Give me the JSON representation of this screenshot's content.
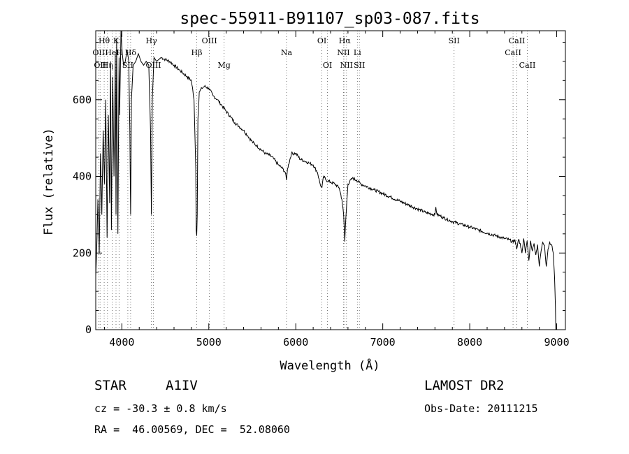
{
  "chart_data": {
    "type": "line",
    "title": "spec-55911-B91107_sp03-087.fits",
    "xlabel": "Wavelength (Å)",
    "ylabel": "Flux (relative)",
    "xlim": [
      3700,
      9100
    ],
    "ylim": [
      0,
      780
    ],
    "xticks": [
      4000,
      5000,
      6000,
      7000,
      8000,
      9000
    ],
    "yticks": [
      0,
      200,
      400,
      600
    ],
    "grid": false,
    "series": [
      {
        "values_note": "",
        "x": [
          3700,
          3710,
          3725,
          3740,
          3755,
          3770,
          3785,
          3800,
          3815,
          3830,
          3845,
          3860,
          3870,
          3880,
          3895,
          3910,
          3925,
          3933,
          3940,
          3955,
          3968,
          3975,
          3990,
          4005,
          4020,
          4040,
          4060,
          4080,
          4092,
          4101,
          4110,
          4130,
          4160,
          4190,
          4220,
          4250,
          4280,
          4310,
          4330,
          4340,
          4350,
          4370,
          4400,
          4450,
          4500,
          4550,
          4600,
          4650,
          4700,
          4750,
          4800,
          4830,
          4850,
          4855,
          4861,
          4867,
          4875,
          4890,
          4920,
          4950,
          5000,
          5050,
          5100,
          5150,
          5200,
          5250,
          5300,
          5350,
          5400,
          5450,
          5500,
          5550,
          5600,
          5650,
          5700,
          5750,
          5800,
          5850,
          5880,
          5893,
          5905,
          5950,
          6000,
          6050,
          6100,
          6150,
          6200,
          6250,
          6280,
          6300,
          6320,
          6350,
          6400,
          6450,
          6500,
          6530,
          6550,
          6563,
          6575,
          6600,
          6650,
          6700,
          6750,
          6800,
          6900,
          7000,
          7100,
          7200,
          7300,
          7400,
          7500,
          7600,
          7610,
          7625,
          7650,
          7700,
          7800,
          7900,
          8000,
          8100,
          8200,
          8300,
          8400,
          8450,
          8500,
          8520,
          8540,
          8560,
          8580,
          8600,
          8620,
          8640,
          8660,
          8680,
          8700,
          8720,
          8740,
          8760,
          8780,
          8800,
          8820,
          8840,
          8860,
          8880,
          8900,
          8920,
          8940,
          8960,
          8975,
          8985,
          8990
        ],
        "y": [
          140,
          200,
          340,
          200,
          460,
          300,
          520,
          380,
          600,
          240,
          560,
          330,
          700,
          260,
          660,
          400,
          720,
          300,
          760,
          250,
          710,
          560,
          780,
          720,
          690,
          700,
          730,
          700,
          520,
          300,
          600,
          690,
          700,
          720,
          700,
          690,
          700,
          690,
          520,
          300,
          600,
          710,
          700,
          710,
          705,
          700,
          690,
          680,
          670,
          660,
          650,
          600,
          420,
          260,
          245,
          300,
          550,
          620,
          630,
          635,
          630,
          610,
          600,
          585,
          570,
          555,
          540,
          530,
          520,
          505,
          490,
          480,
          470,
          460,
          455,
          445,
          430,
          420,
          410,
          390,
          420,
          460,
          460,
          445,
          440,
          435,
          430,
          410,
          380,
          370,
          400,
          390,
          385,
          380,
          370,
          340,
          300,
          230,
          290,
          380,
          395,
          390,
          380,
          375,
          365,
          355,
          345,
          335,
          325,
          315,
          305,
          300,
          320,
          300,
          298,
          292,
          282,
          275,
          268,
          260,
          252,
          245,
          238,
          235,
          228,
          235,
          210,
          235,
          225,
          200,
          238,
          200,
          232,
          180,
          232,
          205,
          225,
          195,
          222,
          165,
          205,
          228,
          220,
          165,
          210,
          228,
          222,
          200,
          140,
          60,
          0
        ]
      }
    ],
    "lines": [
      {
        "x": 3734,
        "label": "OII",
        "row": 2
      },
      {
        "x": 3750,
        "label": "OII",
        "row": 3
      },
      {
        "x": 3797,
        "label": "Hθ",
        "row": 1
      },
      {
        "x": 3835,
        "label": "Hη",
        "row": 3
      },
      {
        "x": 3889,
        "label": "HeI",
        "row": 2
      },
      {
        "x": 3933,
        "label": "K",
        "row": 1
      },
      {
        "x": 3968,
        "label": "H",
        "row": 2
      },
      {
        "x": 4069,
        "label": "SII",
        "row": 3
      },
      {
        "x": 4101,
        "label": "Hδ",
        "row": 2
      },
      {
        "x": 4340,
        "label": "Hγ",
        "row": 1
      },
      {
        "x": 4363,
        "label": "OIII",
        "row": 3
      },
      {
        "x": 4861,
        "label": "Hβ",
        "row": 2
      },
      {
        "x": 5007,
        "label": "OIII",
        "row": 1
      },
      {
        "x": 5176,
        "label": "Mg",
        "row": 3
      },
      {
        "x": 5893,
        "label": "Na",
        "row": 2
      },
      {
        "x": 6300,
        "label": "OI",
        "row": 1
      },
      {
        "x": 6364,
        "label": "OI",
        "row": 3
      },
      {
        "x": 6548,
        "label": "NII",
        "row": 2
      },
      {
        "x": 6563,
        "label": "Hα",
        "row": 1
      },
      {
        "x": 6583,
        "label": "NII",
        "row": 3
      },
      {
        "x": 6708,
        "label": "Li",
        "row": 2
      },
      {
        "x": 6731,
        "label": "SII",
        "row": 3
      },
      {
        "x": 7820,
        "label": "SII",
        "row": 1
      },
      {
        "x": 8498,
        "label": "CaII",
        "row": 2
      },
      {
        "x": 8542,
        "label": "CaII",
        "row": 1
      },
      {
        "x": 8662,
        "label": "CaII",
        "row": 3
      }
    ]
  },
  "info": {
    "object_class": "STAR",
    "subclass": "A1IV",
    "survey": "LAMOST DR2",
    "cz": "cz = -30.3 ± 0.8 km/s",
    "obs_date": "Obs-Date: 20111215",
    "coords": "RA =  46.00569, DEC =  52.08060"
  }
}
